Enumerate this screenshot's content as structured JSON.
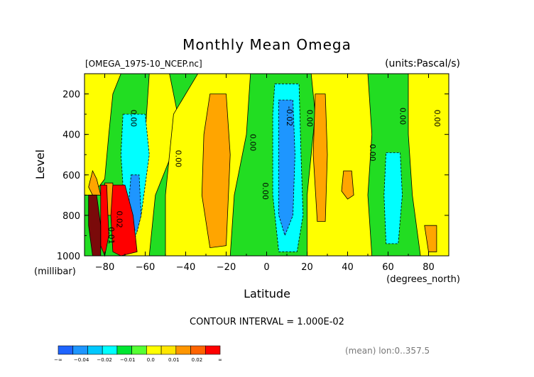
{
  "chart_data": {
    "type": "heatmap",
    "title": "Monthly Mean Omega",
    "file_label": "[OMEGA_1975-10_NCEP.nc]",
    "units_label": "(units:Pascal/s)",
    "xlabel": "Latitude",
    "x_unit_label": "(degrees_north)",
    "ylabel": "Level",
    "y_unit_label": "(millibar)",
    "xlim": [
      -90,
      90
    ],
    "ylim": [
      1000,
      100
    ],
    "x_ticks": [
      -80,
      -60,
      -40,
      -20,
      0,
      20,
      40,
      60,
      80
    ],
    "x_tick_labels": [
      "−80",
      "−60",
      "−40",
      "−20",
      "0",
      "20",
      "40",
      "60",
      "80"
    ],
    "y_ticks": [
      200,
      400,
      600,
      800,
      1000
    ],
    "y_tick_labels": [
      "200",
      "400",
      "600",
      "800",
      "1000"
    ],
    "contour_interval_text": "CONTOUR INTERVAL = 1.000E-02",
    "mean_text": "(mean) lon:0..357.5",
    "colorbar": {
      "colors": [
        "#1e64ff",
        "#1e96ff",
        "#00c8ff",
        "#00ffff",
        "#00e632",
        "#55ff33",
        "#ffff00",
        "#ffe600",
        "#ff9600",
        "#ff6400",
        "#ff0000"
      ],
      "tick_labels": [
        "−∞",
        "−0.04",
        "−0.02",
        "−0.01",
        "0.0",
        "0.01",
        "0.02",
        "∞"
      ]
    },
    "contour_labels": [
      {
        "text": "0.00",
        "lat": -67,
        "level": 320
      },
      {
        "text": "0.00",
        "lat": -45,
        "level": 520
      },
      {
        "text": "0.00",
        "lat": -8,
        "level": 440
      },
      {
        "text": "0.00",
        "lat": -2,
        "level": 680
      },
      {
        "text": "-0.02",
        "lat": 10,
        "level": 310
      },
      {
        "text": "0.00",
        "lat": 20,
        "level": 320
      },
      {
        "text": "0.00",
        "lat": 51,
        "level": 490
      },
      {
        "text": "0.00",
        "lat": 66,
        "level": 310
      },
      {
        "text": "0.00",
        "lat": 83,
        "level": 320
      },
      {
        "text": "0.02",
        "lat": -74,
        "level": 820
      },
      {
        "text": "0.01",
        "lat": -78,
        "level": 900
      }
    ],
    "regions": [
      {
        "value": 0.005,
        "poly": [
          [
            -90,
            100
          ],
          [
            -72,
            100
          ],
          [
            -76,
            200
          ],
          [
            -78,
            400
          ],
          [
            -80,
            620
          ],
          [
            -86,
            700
          ],
          [
            -90,
            700
          ]
        ]
      },
      {
        "value": 0.005,
        "poly": [
          [
            -58,
            100
          ],
          [
            -48,
            100
          ],
          [
            -44,
            300
          ],
          [
            -47,
            500
          ],
          [
            -55,
            700
          ],
          [
            -58,
            1000
          ],
          [
            -70,
            1000
          ],
          [
            -70,
            700
          ],
          [
            -60,
            400
          ]
        ]
      },
      {
        "value": 0.005,
        "poly": [
          [
            -34,
            100
          ],
          [
            -8,
            100
          ],
          [
            -10,
            400
          ],
          [
            -16,
            700
          ],
          [
            -18,
            1000
          ],
          [
            -50,
            1000
          ],
          [
            -50,
            700
          ],
          [
            -46,
            300
          ]
        ]
      },
      {
        "value": 0.005,
        "poly": [
          [
            22,
            100
          ],
          [
            50,
            100
          ],
          [
            52,
            400
          ],
          [
            50,
            700
          ],
          [
            52,
            1000
          ],
          [
            20,
            1000
          ],
          [
            20,
            700
          ],
          [
            24,
            300
          ]
        ]
      },
      {
        "value": 0.005,
        "poly": [
          [
            70,
            100
          ],
          [
            90,
            100
          ],
          [
            90,
            1000
          ],
          [
            76,
            1000
          ],
          [
            72,
            700
          ],
          [
            70,
            400
          ]
        ]
      },
      {
        "value": -0.005,
        "poly": [
          [
            -71,
            300
          ],
          [
            -60,
            300
          ],
          [
            -58,
            500
          ],
          [
            -62,
            800
          ],
          [
            -66,
            950
          ],
          [
            -70,
            800
          ],
          [
            -72,
            500
          ]
        ]
      },
      {
        "value": -0.005,
        "poly": [
          [
            4,
            150
          ],
          [
            16,
            150
          ],
          [
            17,
            500
          ],
          [
            18,
            800
          ],
          [
            15,
            980
          ],
          [
            6,
            980
          ],
          [
            3,
            700
          ],
          [
            3,
            300
          ]
        ]
      },
      {
        "value": -0.005,
        "poly": [
          [
            59,
            490
          ],
          [
            66,
            490
          ],
          [
            67,
            700
          ],
          [
            65,
            940
          ],
          [
            59,
            940
          ],
          [
            58,
            700
          ]
        ]
      },
      {
        "value": -0.015,
        "poly": [
          [
            -67,
            600
          ],
          [
            -63,
            600
          ],
          [
            -62,
            800
          ],
          [
            -64,
            880
          ],
          [
            -67,
            860
          ],
          [
            -68,
            720
          ]
        ]
      },
      {
        "value": -0.015,
        "poly": [
          [
            6,
            230
          ],
          [
            13,
            230
          ],
          [
            14,
            500
          ],
          [
            13,
            800
          ],
          [
            9,
            900
          ],
          [
            6,
            800
          ],
          [
            6,
            450
          ]
        ]
      },
      {
        "value": 0.015,
        "poly": [
          [
            -28,
            200
          ],
          [
            -20,
            200
          ],
          [
            -18,
            500
          ],
          [
            -20,
            950
          ],
          [
            -28,
            960
          ],
          [
            -32,
            700
          ],
          [
            -31,
            400
          ]
        ]
      },
      {
        "value": 0.015,
        "poly": [
          [
            24,
            200
          ],
          [
            29,
            200
          ],
          [
            30,
            500
          ],
          [
            29,
            830
          ],
          [
            25,
            830
          ],
          [
            23,
            500
          ]
        ]
      },
      {
        "value": 0.015,
        "poly": [
          [
            38,
            580
          ],
          [
            42,
            580
          ],
          [
            43,
            700
          ],
          [
            40,
            720
          ],
          [
            37,
            680
          ]
        ]
      },
      {
        "value": 0.015,
        "poly": [
          [
            78,
            850
          ],
          [
            84,
            850
          ],
          [
            84,
            980
          ],
          [
            80,
            980
          ]
        ]
      },
      {
        "value": 0.015,
        "poly": [
          [
            -86,
            580
          ],
          [
            -84,
            620
          ],
          [
            -82,
            700
          ],
          [
            -86,
            700
          ],
          [
            -88,
            660
          ]
        ]
      },
      {
        "value": 0.015,
        "poly": [
          [
            -80,
            640
          ],
          [
            -76,
            640
          ],
          [
            -76,
            800
          ],
          [
            -80,
            800
          ]
        ]
      },
      {
        "value": 0.025,
        "poly": [
          [
            -76,
            650
          ],
          [
            -70,
            650
          ],
          [
            -66,
            800
          ],
          [
            -64,
            980
          ],
          [
            -72,
            1000
          ],
          [
            -76,
            980
          ],
          [
            -77,
            800
          ]
        ]
      },
      {
        "value": 0.025,
        "poly": [
          [
            -82,
            650
          ],
          [
            -79,
            650
          ],
          [
            -78,
            900
          ],
          [
            -80,
            1000
          ],
          [
            -82,
            950
          ]
        ]
      },
      {
        "value": 0.045,
        "poly": [
          [
            -88,
            700
          ],
          [
            -84,
            700
          ],
          [
            -82,
            850
          ],
          [
            -82,
            1000
          ],
          [
            -86,
            1000
          ],
          [
            -88,
            850
          ]
        ]
      }
    ]
  }
}
